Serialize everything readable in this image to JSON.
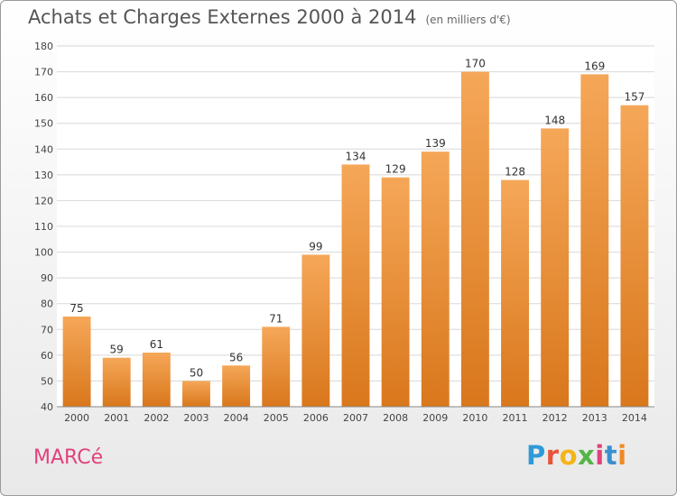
{
  "header": {
    "title": "Achats et Charges Externes 2000 à 2014",
    "subtitle": "(en milliers d'€)"
  },
  "footer": {
    "place": "MARCé",
    "brand": "Proxiti",
    "brand_colors": [
      "#2f9ad8",
      "#e8543a",
      "#f4b41a",
      "#55b548",
      "#e0427c",
      "#3a8fd0",
      "#f08a24"
    ]
  },
  "colors": {
    "bar_top": "#f5a758",
    "bar_bottom": "#d9771c",
    "grid": "#d8d8d8",
    "axis_text": "#444444"
  },
  "chart_data": {
    "type": "bar",
    "categories": [
      "2000",
      "2001",
      "2002",
      "2003",
      "2004",
      "2005",
      "2006",
      "2007",
      "2008",
      "2009",
      "2010",
      "2011",
      "2012",
      "2013",
      "2014"
    ],
    "values": [
      75,
      59,
      61,
      50,
      56,
      71,
      99,
      134,
      129,
      139,
      170,
      128,
      148,
      169,
      157
    ],
    "ylim": [
      40,
      180
    ],
    "yticks": [
      40,
      50,
      60,
      70,
      80,
      90,
      100,
      110,
      120,
      130,
      140,
      150,
      160,
      170,
      180
    ],
    "grid": true,
    "data_labels": true
  }
}
